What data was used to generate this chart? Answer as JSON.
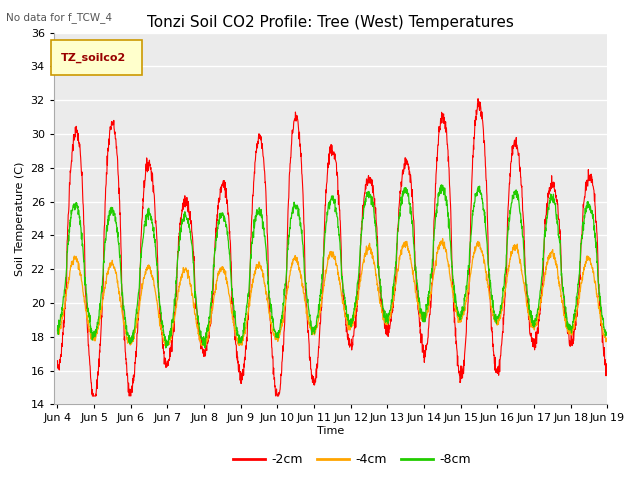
{
  "title": "Tonzi Soil CO2 Profile: Tree (West) Temperatures",
  "no_data_text": "No data for f_TCW_4",
  "ylabel": "Soil Temperature (C)",
  "xlabel": "Time",
  "ylim": [
    14,
    36
  ],
  "yticks": [
    14,
    16,
    18,
    20,
    22,
    24,
    26,
    28,
    30,
    32,
    34,
    36
  ],
  "xtick_labels": [
    "Jun 4",
    "Jun 5",
    "Jun 6",
    "Jun 7",
    "Jun 8",
    "Jun 9",
    "Jun 10",
    "Jun 11",
    "Jun 12",
    "Jun 13",
    "Jun 14",
    "Jun 15",
    "Jun 16",
    "Jun 17",
    "Jun 18",
    "Jun 19"
  ],
  "legend_label": "TZ_soilco2",
  "legend_entries": [
    "-2cm",
    "-4cm",
    "-8cm"
  ],
  "line_colors": [
    "#ff0000",
    "#ffa500",
    "#22cc00"
  ],
  "bg_color": "#ebebeb",
  "title_fontsize": 11,
  "label_fontsize": 8,
  "tick_fontsize": 8
}
